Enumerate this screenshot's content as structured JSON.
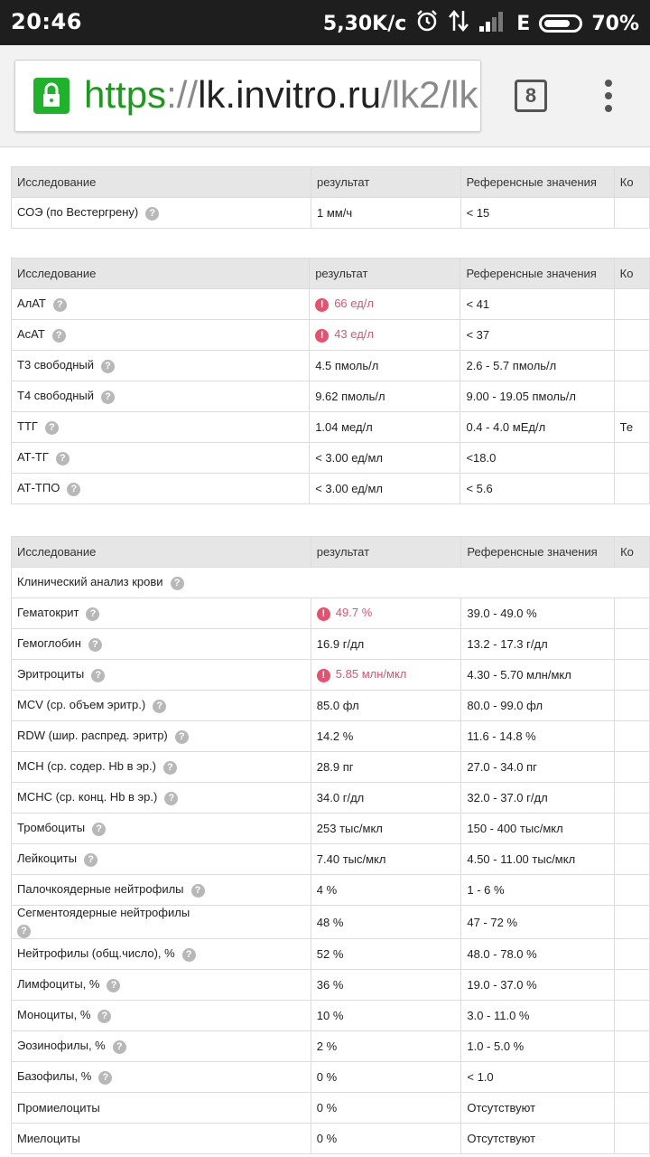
{
  "status_bar": {
    "time": "20:46",
    "speed": "5,30K/c",
    "network": "E",
    "battery": "70%"
  },
  "browser": {
    "url_scheme": "https",
    "url_sep": "://",
    "url_host": "lk.invitro.ru",
    "url_path": "/lk2/lk",
    "tab_count": "8"
  },
  "header": {
    "c1": "Исследование",
    "c2": "результат",
    "c3": "Референсные значения",
    "c4": "Ко"
  },
  "table1": [
    {
      "name": "СОЭ (по Вестергрену)",
      "result": "1 мм/ч",
      "ref": "< 15",
      "comment": ""
    }
  ],
  "table2": [
    {
      "name": "АлАТ",
      "result": "66 ед/л",
      "ref": "< 41",
      "comment": "",
      "flag": true
    },
    {
      "name": "АсАТ",
      "result": "43 ед/л",
      "ref": "< 37",
      "comment": "",
      "flag": true
    },
    {
      "name": "Т3 свободный",
      "result": "4.5 пмоль/л",
      "ref": "2.6 - 5.7 пмоль/л",
      "comment": ""
    },
    {
      "name": "Т4 свободный",
      "result": "9.62 пмоль/л",
      "ref": "9.00 - 19.05 пмоль/л",
      "comment": ""
    },
    {
      "name": "ТТГ",
      "result": "1.04 мед/л",
      "ref": "0.4 - 4.0 мЕд/л",
      "comment": "Те"
    },
    {
      "name": "АТ-ТГ",
      "result": "< 3.00 ед/мл",
      "ref": "<18.0",
      "comment": ""
    },
    {
      "name": "АТ-ТПО",
      "result": "< 3.00 ед/мл",
      "ref": "< 5.6",
      "comment": ""
    }
  ],
  "table3_section": "Клинический анализ крови",
  "table3": [
    {
      "name": "Гематокрит",
      "result": "49.7 %",
      "ref": "39.0 - 49.0 %",
      "flag": true
    },
    {
      "name": "Гемоглобин",
      "result": "16.9 г/дл",
      "ref": "13.2 - 17.3 г/дл"
    },
    {
      "name": "Эритроциты",
      "result": "5.85 млн/мкл",
      "ref": "4.30 - 5.70 млн/мкл",
      "flag": true
    },
    {
      "name": "MCV (ср. объем эритр.)",
      "result": "85.0 фл",
      "ref": "80.0 - 99.0 фл"
    },
    {
      "name": "RDW (шир. распред. эритр)",
      "result": "14.2 %",
      "ref": "11.6 - 14.8 %"
    },
    {
      "name": "MCH (ср. содер. Hb в эр.)",
      "result": "28.9 пг",
      "ref": "27.0 - 34.0 пг"
    },
    {
      "name": "MCHC (ср. конц. Hb в эр.)",
      "result": "34.0 г/дл",
      "ref": "32.0 - 37.0 г/дл"
    },
    {
      "name": "Тромбоциты",
      "result": "253 тыс/мкл",
      "ref": "150 - 400 тыс/мкл"
    },
    {
      "name": "Лейкоциты",
      "result": "7.40 тыс/мкл",
      "ref": "4.50 - 11.00 тыс/мкл"
    },
    {
      "name": "Палочкоядерные нейтрофилы",
      "result": "4 %",
      "ref": "1 - 6 %"
    },
    {
      "name": "Сегментоядерные нейтрофилы",
      "result": "48 %",
      "ref": "47 - 72 %",
      "tall": true
    },
    {
      "name": "Нейтрофилы (общ.число), %",
      "result": "52 %",
      "ref": "48.0 - 78.0 %"
    },
    {
      "name": "Лимфоциты, %",
      "result": "36 %",
      "ref": "19.0 - 37.0 %"
    },
    {
      "name": "Моноциты, %",
      "result": "10 %",
      "ref": "3.0 - 11.0 %"
    },
    {
      "name": "Эозинофилы, %",
      "result": "2 %",
      "ref": "1.0 - 5.0 %"
    },
    {
      "name": "Базофилы, %",
      "result": "0 %",
      "ref": "< 1.0"
    },
    {
      "name": "Промиелоциты",
      "result": "0 %",
      "ref": "Отсутствуют",
      "noq": true
    },
    {
      "name": "Миелоциты",
      "result": "0 %",
      "ref": "Отсутствуют",
      "noq": true
    }
  ]
}
